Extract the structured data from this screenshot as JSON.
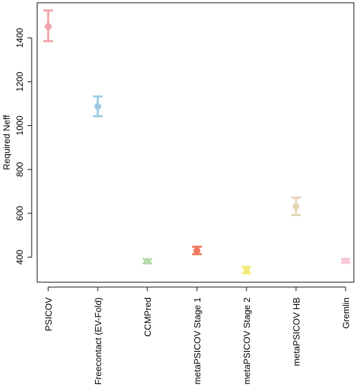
{
  "chart_data": {
    "type": "errorbar",
    "title": "",
    "xlabel": "",
    "ylabel": "Required Neff",
    "ylim": [
      286,
      1560
    ],
    "yticks": [
      400,
      600,
      800,
      1000,
      1200,
      1400
    ],
    "grid": false,
    "categories": [
      "PSICOV",
      "Freecontact (EV-Fold)",
      "CCMPred",
      "metaPSICOV Stage 1",
      "metaPSICOV Stage 2",
      "metaPSICOV HB",
      "Gremlin"
    ],
    "points": [
      {
        "value": 1452,
        "low": 1385,
        "high": 1525,
        "color": "#f0a3a8"
      },
      {
        "value": 1087,
        "low": 1043,
        "high": 1133,
        "color": "#9ecae1"
      },
      {
        "value": 382,
        "low": 372,
        "high": 391,
        "color": "#b6ddb0"
      },
      {
        "value": 430,
        "low": 414,
        "high": 448,
        "color": "#ef7b5e"
      },
      {
        "value": 342,
        "low": 327,
        "high": 356,
        "color": "#f2ea7a"
      },
      {
        "value": 632,
        "low": 592,
        "high": 672,
        "color": "#e8d5b4"
      },
      {
        "value": 384,
        "low": 375,
        "high": 392,
        "color": "#f7c5da"
      }
    ]
  }
}
